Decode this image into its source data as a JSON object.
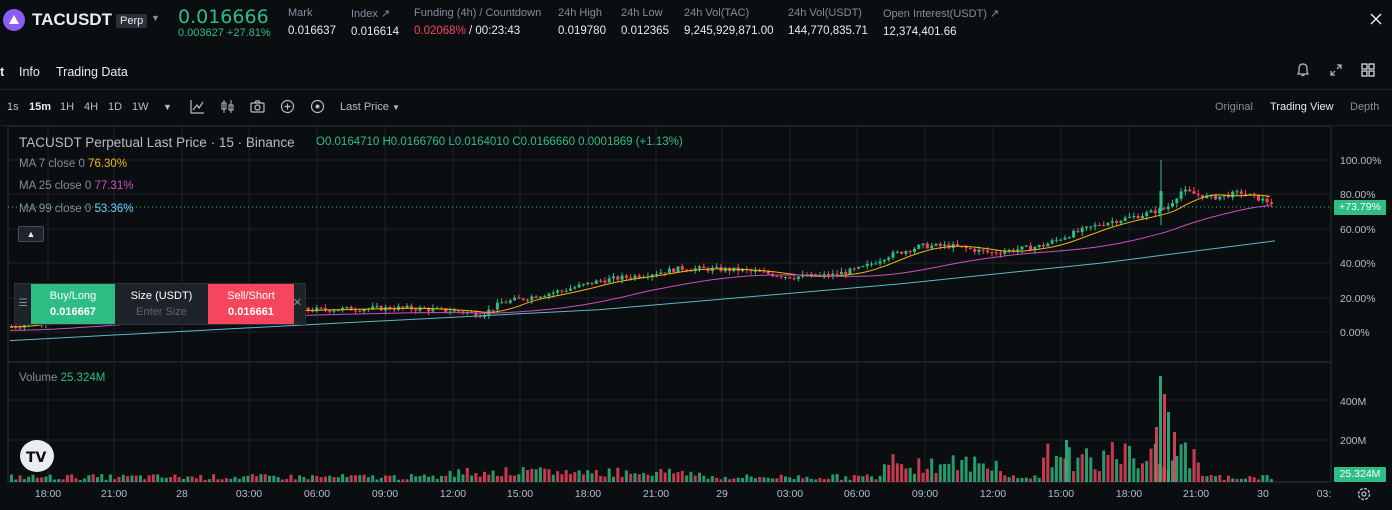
{
  "header": {
    "symbol": "TACUSDT",
    "contract_type": "Perp",
    "last_price": "0.016666",
    "change": "0.003627 +27.81%",
    "stats": [
      {
        "label": "Mark",
        "value": "0.016637"
      },
      {
        "label": "Index ↗",
        "value": "0.016614"
      },
      {
        "label": "Funding (4h) / Countdown",
        "value_red": "0.02068%",
        "value": " / 00:23:43"
      },
      {
        "label": "24h High",
        "value": "0.019780"
      },
      {
        "label": "24h Low",
        "value": "0.012365"
      },
      {
        "label": "24h Vol(TAC)",
        "value": "9,245,929,871.00"
      },
      {
        "label": "24h Vol(USDT)",
        "value": "144,770,835.71"
      },
      {
        "label": "Open Interest(USDT) ↗",
        "value": "12,374,401.66"
      }
    ]
  },
  "tabs": [
    "t",
    "Info",
    "Trading Data"
  ],
  "toolbar": {
    "timeframes": [
      "1s",
      "15m",
      "1H",
      "4H",
      "1D",
      "1W"
    ],
    "active_timeframe": "15m",
    "price_type": "Last Price",
    "views": [
      "Original",
      "Trading View",
      "Depth"
    ],
    "active_view": "Trading View"
  },
  "chart": {
    "title": "TACUSDT Perpetual Last Price · 15 · Binance",
    "ohlc": "O0.0164710  H0.0166760  L0.0164010  C0.0166660  0.0001869 (+1.13%)",
    "ma": [
      {
        "label": "MA 7 close 0",
        "value": "76.30%",
        "color": "#f0b90b"
      },
      {
        "label": "MA 25 close 0",
        "value": "77.31%",
        "color": "#c850c0"
      },
      {
        "label": "MA 99 close 0",
        "value": "53.36%",
        "color": "#64d2ff"
      }
    ],
    "collapse_icon": "chevron-up-icon",
    "volume_label": "Volume",
    "volume_value": "25.324M",
    "y_labels": [
      "100.00%",
      "80.00%",
      "60.00%",
      "40.00%",
      "20.00%",
      "0.00%"
    ],
    "price_tag": "+73.79%",
    "vol_y_labels": [
      "400M",
      "200M"
    ],
    "vol_tag": "25.324M",
    "x_labels": [
      "18:00",
      "21:00",
      "28",
      "03:00",
      "06:00",
      "09:00",
      "12:00",
      "15:00",
      "18:00",
      "21:00",
      "29",
      "03:00",
      "06:00",
      "09:00",
      "12:00",
      "15:00",
      "18:00",
      "21:00",
      "30",
      "03:"
    ]
  },
  "trade_panel": {
    "buy_label": "Buy/Long",
    "buy_price": "0.016667",
    "size_label": "Size (USDT)",
    "size_placeholder": "Enter Size",
    "sell_label": "Sell/Short",
    "sell_price": "0.016661"
  },
  "colors": {
    "up": "#2ebd85",
    "down": "#f6465d",
    "bg": "#0b0e11"
  }
}
